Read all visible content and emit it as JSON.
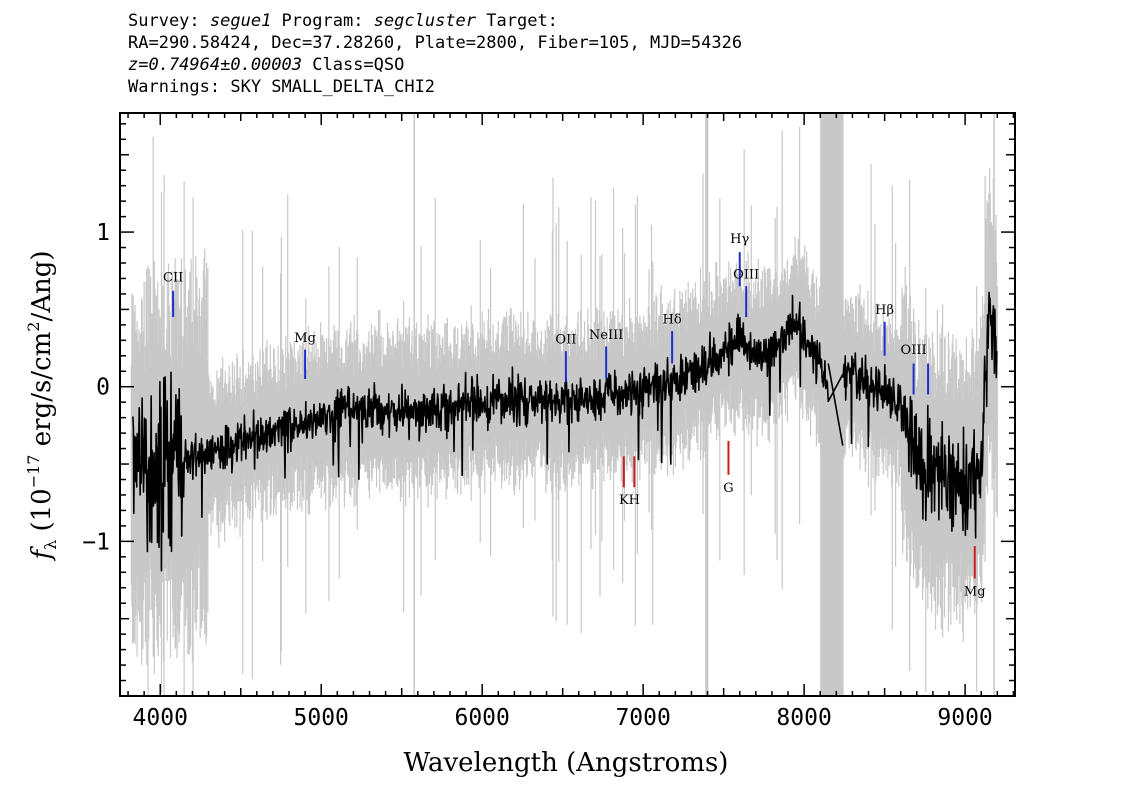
{
  "header": {
    "line1": {
      "survey_prefix": "Survey: ",
      "survey": "segue1",
      "program_prefix": " Program: ",
      "program": "segcluster",
      "target_suffix": " Target:"
    },
    "line2": "RA=290.58424, Dec=37.28260, Plate=2800, Fiber=105, MJD=54326",
    "line3": {
      "redshift": "z=0.74964±0.00003",
      "class": " Class=QSO"
    },
    "line4": "Warnings: SKY SMALL_DELTA_CHI2"
  },
  "colors": {
    "flux": "#000000",
    "noise": "#c8c8c8",
    "masked_band": "#c8c8c8",
    "emission_marker": "#1f2ecc",
    "absorption_marker": "#cc1f1f"
  },
  "chart_data": {
    "type": "line",
    "xlabel": "Wavelength (Angstroms)",
    "ylabel_symbol": "f",
    "ylabel_subscript": "λ",
    "ylabel_open": " (10",
    "ylabel_exponent": "−17",
    "ylabel_mid": " erg/s/cm",
    "ylabel_exponent2": "2",
    "ylabel_close": "/Ang)",
    "xlim": [
      3750,
      9310
    ],
    "ylim": [
      -2.0,
      1.77
    ],
    "x_ticks": [
      {
        "value": 4000,
        "label": "4000"
      },
      {
        "value": 5000,
        "label": "5000"
      },
      {
        "value": 6000,
        "label": "6000"
      },
      {
        "value": 7000,
        "label": "7000"
      },
      {
        "value": 8000,
        "label": "8000"
      },
      {
        "value": 9000,
        "label": "9000"
      }
    ],
    "y_ticks": [
      {
        "value": -1,
        "label": "−1"
      },
      {
        "value": 0,
        "label": "0"
      },
      {
        "value": 1,
        "label": "1"
      }
    ],
    "masked_regions": [
      {
        "x0": 8100,
        "x1": 8245
      },
      {
        "x0": 7385,
        "x1": 7405
      }
    ],
    "sky_lines": [
      5578,
      9180
    ],
    "gap": {
      "x0": 8150,
      "x1": 8240,
      "y0": 0.15,
      "y1": -0.38
    },
    "series": [
      {
        "role": "flux",
        "x": [
          3830,
          4000,
          4200,
          4500,
          4800,
          5000,
          5300,
          5600,
          5900,
          6200,
          6500,
          6800,
          7000,
          7200,
          7400,
          7500,
          7600,
          7700,
          7800,
          7900,
          7950,
          8000,
          8050,
          8100,
          8150,
          8250,
          8300,
          8400,
          8500,
          8600,
          8700,
          8800,
          8900,
          9000,
          9100,
          9150,
          9200
        ],
        "y": [
          -0.55,
          -0.5,
          -0.45,
          -0.35,
          -0.25,
          -0.2,
          -0.15,
          -0.15,
          -0.12,
          -0.08,
          -0.1,
          -0.05,
          -0.02,
          0.05,
          0.15,
          0.25,
          0.28,
          0.2,
          0.22,
          0.35,
          0.45,
          0.35,
          0.25,
          0.15,
          0.08,
          0.05,
          0.1,
          0.0,
          -0.05,
          -0.1,
          -0.5,
          -0.55,
          -0.6,
          -0.6,
          -0.5,
          0.5,
          0.1
        ]
      }
    ],
    "emission_lines": [
      {
        "label": "CII",
        "x": 4080,
        "y0": 0.45,
        "y1": 0.62,
        "label_y": 0.68
      },
      {
        "label": "Mg",
        "x": 4900,
        "y0": 0.05,
        "y1": 0.24,
        "label_y": 0.29
      },
      {
        "label": "OII",
        "x": 6520,
        "y0": 0.03,
        "y1": 0.23,
        "label_y": 0.28
      },
      {
        "label": "NeIII",
        "x": 6770,
        "y0": 0.05,
        "y1": 0.26,
        "label_y": 0.31
      },
      {
        "label": "Hδ",
        "x": 7180,
        "y0": 0.15,
        "y1": 0.36,
        "label_y": 0.41
      },
      {
        "label": "Hγ",
        "x": 7600,
        "y0": 0.65,
        "y1": 0.87,
        "label_y": 0.93
      },
      {
        "label": "OIII",
        "x": 7640,
        "y0": 0.45,
        "y1": 0.65,
        "label_y": 0.7
      },
      {
        "label": "Hβ",
        "x": 8500,
        "y0": 0.2,
        "y1": 0.42,
        "label_y": 0.47
      },
      {
        "label": "OIII",
        "x": 8680,
        "y0": -0.05,
        "y1": 0.15,
        "label_y": 0.21
      },
      {
        "label": "OIII",
        "x": 8770,
        "y0": -0.05,
        "y1": 0.15,
        "label_y": null
      }
    ],
    "absorption_lines": [
      {
        "label": "K",
        "x": 6880,
        "y0": -0.45,
        "y1": -0.65,
        "label_y": -0.76
      },
      {
        "label": "H",
        "x": 6945,
        "y0": -0.45,
        "y1": -0.65,
        "label_y": -0.76
      },
      {
        "label": "G",
        "x": 7530,
        "y0": -0.35,
        "y1": -0.57,
        "label_y": -0.68
      },
      {
        "label": "Mg",
        "x": 9060,
        "y0": -1.03,
        "y1": -1.24,
        "label_y": -1.35
      }
    ]
  }
}
